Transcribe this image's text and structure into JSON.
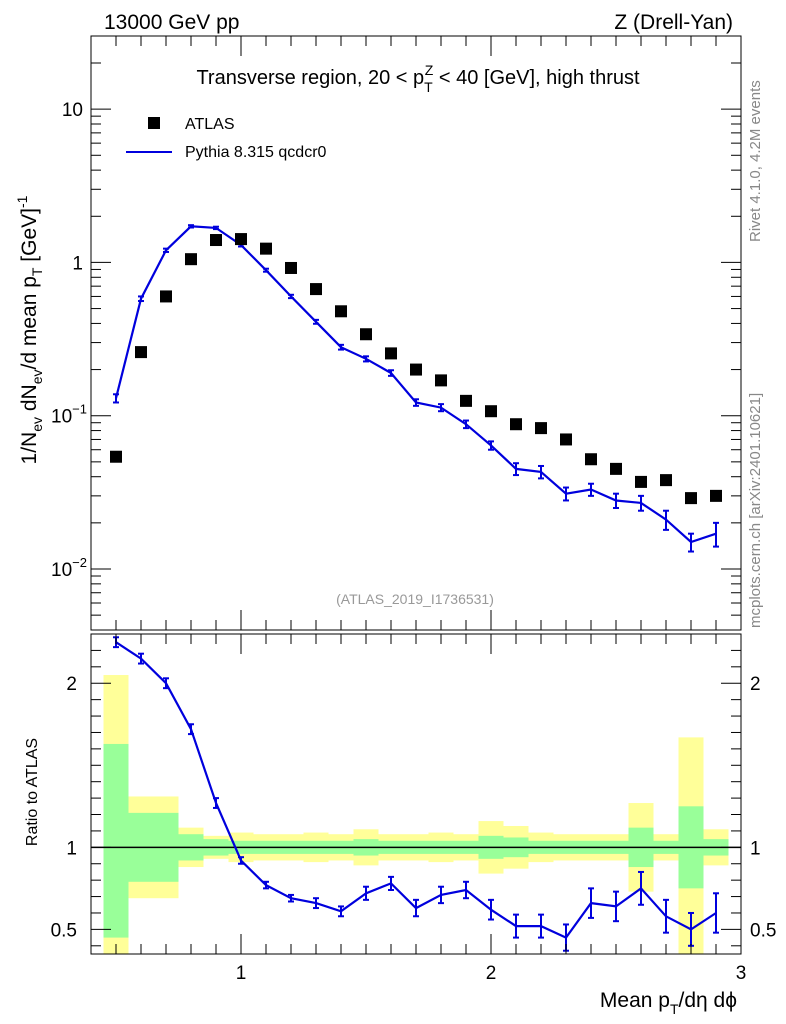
{
  "header": {
    "left": "13000 GeV pp",
    "right": "Z (Drell-Yan)"
  },
  "side_labels": {
    "rivet": "Rivet 4.1.0,  4.2M events",
    "mcplots": "mcplots.cern.ch [arXiv:2401.10621]"
  },
  "chart_data": [
    {
      "panel": "main",
      "type": "scatter",
      "title": "Transverse region, 20 < p_T^Z < 40 [GeV], high thrust",
      "ylabel": "1/N_ev dN_ev/d mean p_T [GeV]^-1",
      "yscale": "log",
      "xlim": [
        0.4,
        3.0
      ],
      "ylim": [
        0.004,
        30
      ],
      "yticks": [
        0.01,
        0.1,
        1,
        10
      ],
      "ytick_labels": [
        "10^-2",
        "10^-1",
        "1",
        "10"
      ],
      "analysis_id": "(ATLAS_2019_I1736531)",
      "legend": {
        "placement": "top-left",
        "entries": [
          "ATLAS",
          "Pythia 8.315 qcdcr0"
        ]
      },
      "x": [
        0.5,
        0.6,
        0.7,
        0.8,
        0.9,
        1.0,
        1.1,
        1.2,
        1.3,
        1.4,
        1.5,
        1.6,
        1.7,
        1.8,
        1.9,
        2.0,
        2.1,
        2.2,
        2.3,
        2.4,
        2.5,
        2.6,
        2.7,
        2.8,
        2.9
      ],
      "series": [
        {
          "name": "ATLAS",
          "style": "markers",
          "color": "#000000",
          "values": [
            0.054,
            0.26,
            0.6,
            1.05,
            1.4,
            1.42,
            1.23,
            0.92,
            0.67,
            0.48,
            0.34,
            0.255,
            0.2,
            0.17,
            0.125,
            0.107,
            0.088,
            0.083,
            0.07,
            0.052,
            0.045,
            0.037,
            0.038,
            0.029,
            0.03
          ]
        },
        {
          "name": "Pythia 8.315 qcdcr0",
          "style": "line",
          "color": "#0000dd",
          "values": [
            0.13,
            0.58,
            1.2,
            1.72,
            1.68,
            1.3,
            0.89,
            0.6,
            0.41,
            0.28,
            0.235,
            0.19,
            0.122,
            0.113,
            0.088,
            0.064,
            0.045,
            0.043,
            0.031,
            0.033,
            0.028,
            0.027,
            0.021,
            0.015,
            0.017
          ],
          "errors": [
            0.008,
            0.02,
            0.03,
            0.03,
            0.03,
            0.03,
            0.02,
            0.015,
            0.012,
            0.01,
            0.009,
            0.008,
            0.006,
            0.006,
            0.005,
            0.004,
            0.004,
            0.004,
            0.003,
            0.003,
            0.003,
            0.003,
            0.003,
            0.002,
            0.003
          ]
        }
      ]
    },
    {
      "panel": "ratio",
      "type": "line",
      "xlabel": "Mean p_T/dη dϕ",
      "ylabel": "Ratio to ATLAS",
      "xlim": [
        0.4,
        3.0
      ],
      "ylim": [
        0.35,
        2.3
      ],
      "xticks": [
        1,
        2,
        3
      ],
      "yticks": [
        0.5,
        1,
        2
      ],
      "reference_line": 1.0,
      "x": [
        0.5,
        0.6,
        0.7,
        0.8,
        0.9,
        1.0,
        1.1,
        1.2,
        1.3,
        1.4,
        1.5,
        1.6,
        1.7,
        1.8,
        1.9,
        2.0,
        2.1,
        2.2,
        2.3,
        2.4,
        2.5,
        2.6,
        2.7,
        2.8,
        2.9
      ],
      "bins": [
        [
          0.45,
          0.55
        ],
        [
          0.55,
          0.65
        ],
        [
          0.65,
          0.75
        ],
        [
          0.75,
          0.85
        ],
        [
          0.85,
          0.95
        ],
        [
          0.95,
          1.05
        ],
        [
          1.05,
          1.15
        ],
        [
          1.15,
          1.25
        ],
        [
          1.25,
          1.35
        ],
        [
          1.35,
          1.45
        ],
        [
          1.45,
          1.55
        ],
        [
          1.55,
          1.65
        ],
        [
          1.65,
          1.75
        ],
        [
          1.75,
          1.85
        ],
        [
          1.85,
          1.95
        ],
        [
          1.95,
          2.05
        ],
        [
          2.05,
          2.15
        ],
        [
          2.15,
          2.25
        ],
        [
          2.25,
          2.35
        ],
        [
          2.35,
          2.45
        ],
        [
          2.45,
          2.55
        ],
        [
          2.55,
          2.65
        ],
        [
          2.65,
          2.75
        ],
        [
          2.75,
          2.85
        ],
        [
          2.85,
          2.95
        ]
      ],
      "band_stat": [
        [
          0.45,
          1.63
        ],
        [
          0.79,
          1.21
        ],
        [
          0.79,
          1.21
        ],
        [
          0.92,
          1.08
        ],
        [
          0.95,
          1.05
        ],
        [
          0.96,
          1.04
        ],
        [
          0.96,
          1.04
        ],
        [
          0.96,
          1.04
        ],
        [
          0.96,
          1.04
        ],
        [
          0.96,
          1.04
        ],
        [
          0.95,
          1.05
        ],
        [
          0.96,
          1.04
        ],
        [
          0.96,
          1.04
        ],
        [
          0.96,
          1.04
        ],
        [
          0.96,
          1.04
        ],
        [
          0.93,
          1.07
        ],
        [
          0.94,
          1.06
        ],
        [
          0.96,
          1.04
        ],
        [
          0.96,
          1.04
        ],
        [
          0.96,
          1.04
        ],
        [
          0.96,
          1.04
        ],
        [
          0.88,
          1.12
        ],
        [
          0.96,
          1.04
        ],
        [
          0.75,
          1.25
        ],
        [
          0.95,
          1.05
        ]
      ],
      "band_total": [
        [
          0.35,
          2.05
        ],
        [
          0.69,
          1.31
        ],
        [
          0.69,
          1.31
        ],
        [
          0.88,
          1.12
        ],
        [
          0.93,
          1.07
        ],
        [
          0.91,
          1.09
        ],
        [
          0.92,
          1.08
        ],
        [
          0.92,
          1.08
        ],
        [
          0.91,
          1.09
        ],
        [
          0.92,
          1.08
        ],
        [
          0.89,
          1.11
        ],
        [
          0.92,
          1.08
        ],
        [
          0.92,
          1.08
        ],
        [
          0.91,
          1.09
        ],
        [
          0.92,
          1.08
        ],
        [
          0.84,
          1.16
        ],
        [
          0.87,
          1.13
        ],
        [
          0.91,
          1.09
        ],
        [
          0.92,
          1.08
        ],
        [
          0.92,
          1.08
        ],
        [
          0.92,
          1.08
        ],
        [
          0.73,
          1.27
        ],
        [
          0.92,
          1.08
        ],
        [
          0.35,
          1.67
        ],
        [
          0.89,
          1.11
        ]
      ],
      "series": [
        {
          "name": "Pythia 8.315 qcdcr0",
          "color": "#0000dd",
          "values": [
            2.25,
            2.15,
            2.0,
            1.72,
            1.27,
            0.92,
            0.77,
            0.69,
            0.66,
            0.61,
            0.72,
            0.78,
            0.63,
            0.71,
            0.74,
            0.62,
            0.52,
            0.52,
            0.45,
            0.66,
            0.64,
            0.75,
            0.58,
            0.5,
            0.6
          ],
          "errors": [
            0.03,
            0.03,
            0.03,
            0.03,
            0.03,
            0.02,
            0.02,
            0.02,
            0.03,
            0.03,
            0.04,
            0.04,
            0.05,
            0.05,
            0.05,
            0.06,
            0.07,
            0.07,
            0.08,
            0.09,
            0.09,
            0.1,
            0.1,
            0.1,
            0.12
          ]
        }
      ],
      "band_colors": {
        "total": "#ffff99",
        "stat": "#99ff99"
      }
    }
  ]
}
